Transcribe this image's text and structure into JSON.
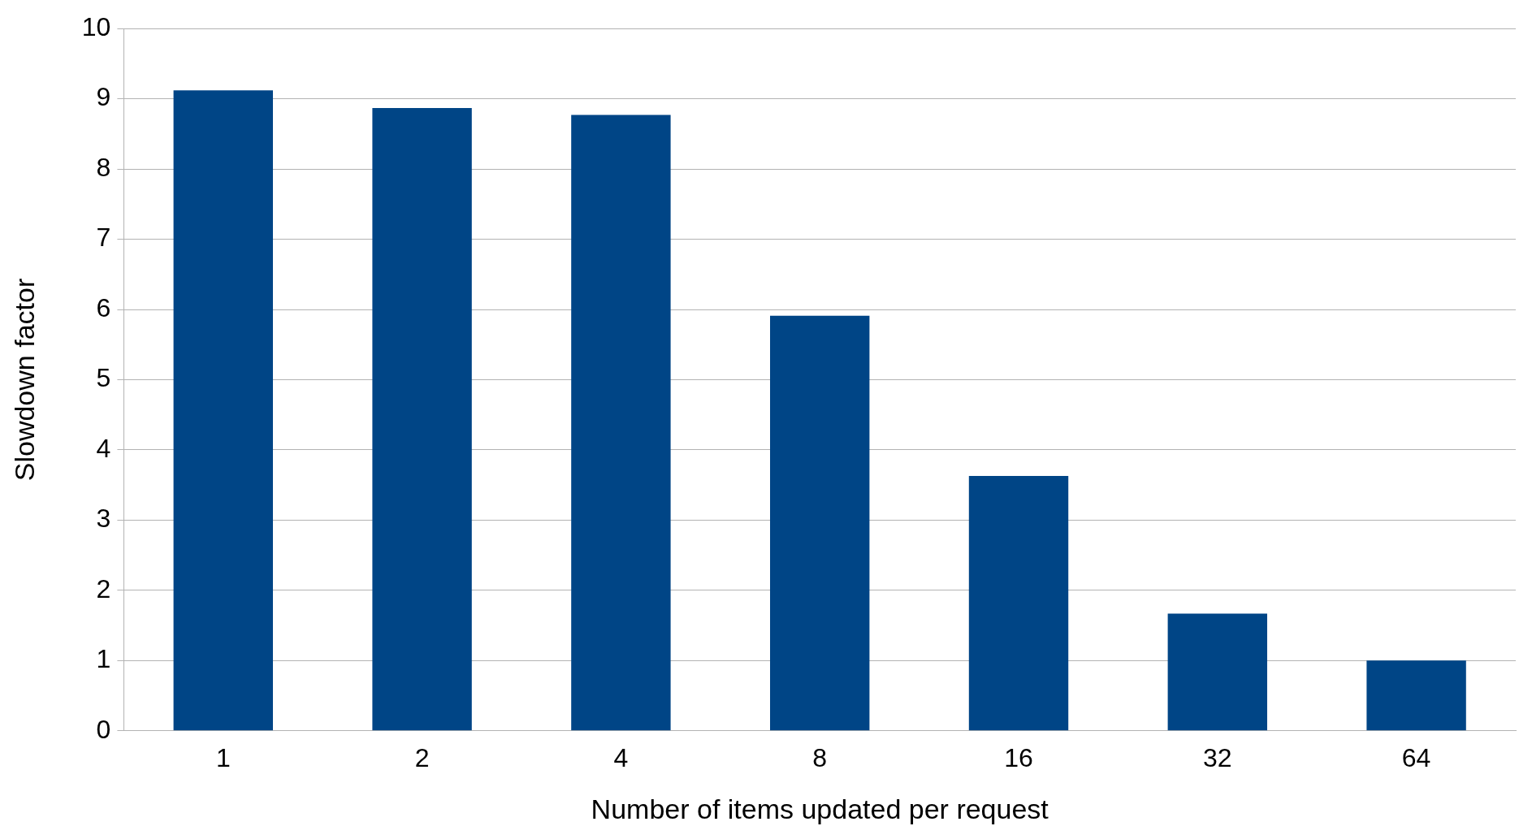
{
  "chart_data": {
    "type": "bar",
    "xlabel": "Number of items updated per request",
    "ylabel": "Slowdown factor",
    "categories": [
      "1",
      "2",
      "4",
      "8",
      "16",
      "32",
      "64"
    ],
    "series": [
      {
        "color": "#004586",
        "values": [
          9.12,
          8.87,
          8.77,
          5.91,
          3.63,
          1.67,
          1.0
        ]
      }
    ],
    "ylim": [
      0,
      10
    ],
    "yticks": [
      0,
      1,
      2,
      3,
      4,
      5,
      6,
      7,
      8,
      9,
      10
    ],
    "grid": "y",
    "legend": false
  }
}
